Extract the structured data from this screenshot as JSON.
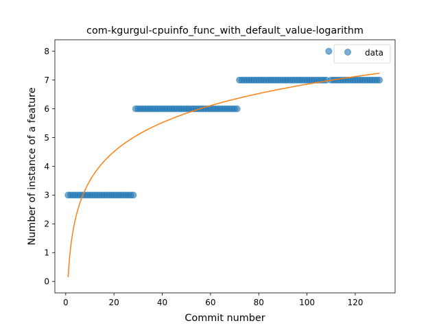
{
  "chart_data": {
    "type": "scatter",
    "title": "com-kgurgul-cpuinfo_func_with_default_value-logarithm",
    "xlabel": "Commit number",
    "ylabel": "Number of instance of a feature",
    "xlim": [
      -4.5,
      136.5
    ],
    "ylim": [
      -0.4,
      8.4
    ],
    "x_ticks": [
      0,
      20,
      40,
      60,
      80,
      100,
      120
    ],
    "y_ticks": [
      0,
      1,
      2,
      3,
      4,
      5,
      6,
      7,
      8
    ],
    "grid": false,
    "legend": {
      "position": "upper-right",
      "entries": [
        "data"
      ]
    },
    "series": [
      {
        "name": "data",
        "kind": "scatter",
        "color": "#1f77b4",
        "segments": [
          {
            "x_start": 1,
            "x_end": 28,
            "y": 3
          },
          {
            "x_start": 29,
            "x_end": 71,
            "y": 6
          },
          {
            "x_start": 72,
            "x_end": 108,
            "y": 7
          },
          {
            "x_start": 109,
            "x_end": 109,
            "y": 8
          },
          {
            "x_start": 110,
            "x_end": 130,
            "y": 7
          }
        ]
      },
      {
        "kind": "line",
        "color": "#ff7f0e",
        "model": "logarithmic",
        "a": 0.146,
        "b": 1.457,
        "x_start": 1,
        "x_end": 130
      }
    ]
  }
}
